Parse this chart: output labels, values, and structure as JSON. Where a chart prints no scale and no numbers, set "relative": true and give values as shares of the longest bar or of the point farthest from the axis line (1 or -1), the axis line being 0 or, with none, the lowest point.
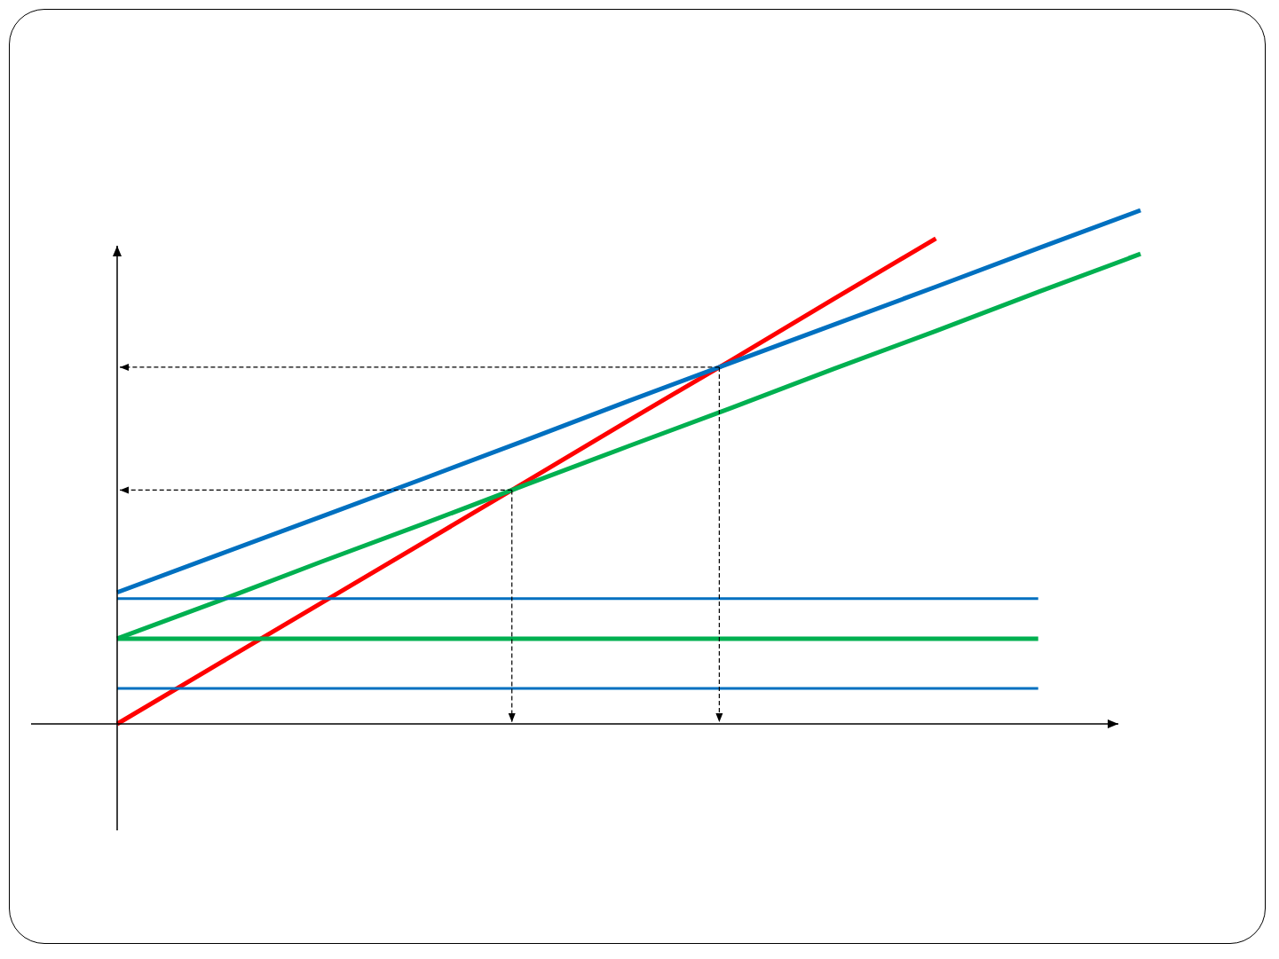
{
  "chart_data": {
    "type": "line",
    "relative": true,
    "categories": [
      null,
      null,
      null,
      null,
      null,
      null,
      null,
      null,
      null,
      null,
      null
    ],
    "series": [
      {
        "color": "#ff0000",
        "values": [
          0,
          0.118,
          0.236,
          0.354,
          0.472,
          0.591,
          0.708,
          0.827,
          0.945,
          null,
          null
        ]
      },
      {
        "color": "#0070c0",
        "values": [
          0.256,
          0.33,
          0.404,
          0.478,
          0.553,
          0.629,
          0.703,
          0.777,
          0.851,
          0.926,
          1
        ]
      },
      {
        "color": "#00b050",
        "values": [
          0.166,
          0.24,
          0.316,
          0.39,
          0.466,
          0.541,
          0.615,
          0.691,
          0.765,
          0.841,
          0.915
        ]
      },
      {
        "color": "#0070c0",
        "values": [
          0.244,
          0.244,
          0.244,
          0.244,
          0.244,
          0.244,
          0.244,
          0.244,
          0.244,
          0.244,
          null
        ]
      },
      {
        "color": "#00b050",
        "values": [
          0.166,
          0.166,
          0.166,
          0.166,
          0.166,
          0.166,
          0.166,
          0.166,
          0.166,
          0.166,
          null
        ]
      },
      {
        "color": "#0070c0",
        "values": [
          0.069,
          0.069,
          0.069,
          0.069,
          0.069,
          0.069,
          0.069,
          0.069,
          0.069,
          0.069,
          null
        ]
      }
    ]
  }
}
